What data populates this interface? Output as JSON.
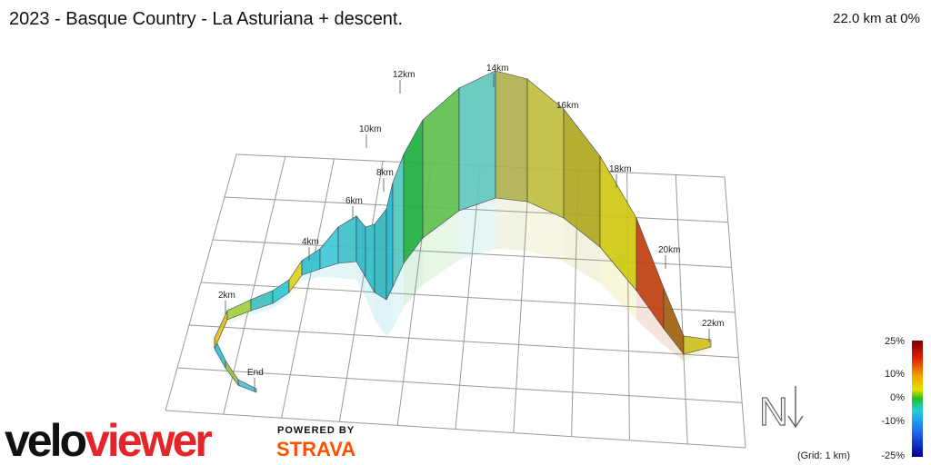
{
  "header": {
    "title": "2023 - Basque Country - La Asturiana + descent.",
    "status": "22.0 km at 0%"
  },
  "km_labels": [
    "2km",
    "4km",
    "6km",
    "8km",
    "10km",
    "12km",
    "14km",
    "16km",
    "18km",
    "20km",
    "22km",
    "End"
  ],
  "gradient_legend": {
    "labels": [
      "25%",
      "10%",
      "0%",
      "-10%",
      "-25%"
    ],
    "note": "(Grid: 1 km)"
  },
  "compass": "N",
  "branding": {
    "logo_part1": "velo",
    "logo_part2": "viewer",
    "powered_by": "POWERED BY",
    "partner": "STRAVA"
  }
}
